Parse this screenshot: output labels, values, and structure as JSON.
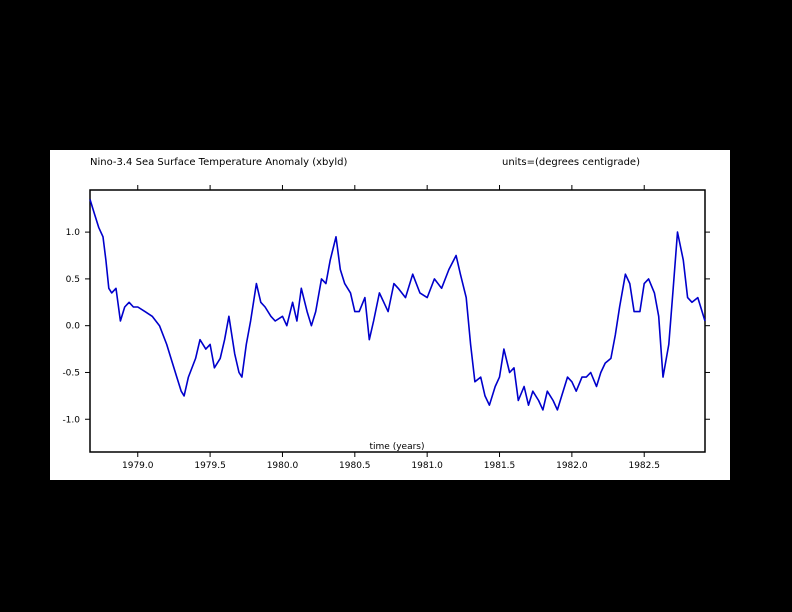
{
  "chart_data": {
    "type": "line",
    "title": "Nino-3.4 Sea Surface Temperature Anomaly (xbyld)",
    "units": "units=(degrees centigrade)",
    "xlabel": "time (years)",
    "ylabel": "",
    "xlim": [
      1978.67,
      1982.92
    ],
    "ylim": [
      -1.35,
      1.45
    ],
    "x_ticks": [
      1979.0,
      1979.5,
      1980.0,
      1980.5,
      1981.0,
      1981.5,
      1982.0,
      1982.5
    ],
    "x_tick_labels": [
      "1979.0",
      "1979.5",
      "1980.0",
      "1980.5",
      "1981.0",
      "1981.5",
      "1982.0",
      "1982.5"
    ],
    "y_ticks": [
      -1.0,
      -0.5,
      0.0,
      0.5,
      1.0
    ],
    "y_tick_labels": [
      "-1.0",
      "-0.5",
      "0.0",
      "0.5",
      "1.0"
    ],
    "grid": false,
    "line_color": "#0000cc",
    "series": [
      {
        "x": [
          1978.67,
          1978.7,
          1978.73,
          1978.76,
          1978.78,
          1978.8,
          1978.82,
          1978.85,
          1978.88,
          1978.91,
          1978.94,
          1978.97,
          1979.0,
          1979.05,
          1979.1,
          1979.15,
          1979.2,
          1979.23,
          1979.27,
          1979.3,
          1979.32,
          1979.35,
          1979.4,
          1979.43,
          1979.47,
          1979.5,
          1979.53,
          1979.57,
          1979.6,
          1979.63,
          1979.67,
          1979.7,
          1979.72,
          1979.75,
          1979.78,
          1979.82,
          1979.85,
          1979.88,
          1979.92,
          1979.95,
          1980.0,
          1980.03,
          1980.07,
          1980.1,
          1980.13,
          1980.17,
          1980.2,
          1980.23,
          1980.27,
          1980.3,
          1980.33,
          1980.37,
          1980.4,
          1980.43,
          1980.47,
          1980.5,
          1980.53,
          1980.57,
          1980.6,
          1980.63,
          1980.67,
          1980.7,
          1980.73,
          1980.77,
          1980.8,
          1980.85,
          1980.9,
          1980.95,
          1981.0,
          1981.05,
          1981.1,
          1981.15,
          1981.2,
          1981.23,
          1981.27,
          1981.3,
          1981.33,
          1981.37,
          1981.4,
          1981.43,
          1981.47,
          1981.5,
          1981.53,
          1981.57,
          1981.6,
          1981.63,
          1981.67,
          1981.7,
          1981.73,
          1981.77,
          1981.8,
          1981.83,
          1981.87,
          1981.9,
          1981.93,
          1981.97,
          1982.0,
          1982.03,
          1982.07,
          1982.1,
          1982.13,
          1982.17,
          1982.2,
          1982.23,
          1982.27,
          1982.3,
          1982.33,
          1982.37,
          1982.4,
          1982.43,
          1982.47,
          1982.5,
          1982.53,
          1982.57,
          1982.6,
          1982.63,
          1982.67,
          1982.7,
          1982.73,
          1982.77,
          1982.8,
          1982.83,
          1982.87,
          1982.9,
          1982.92
        ],
        "y": [
          1.35,
          1.2,
          1.05,
          0.95,
          0.7,
          0.4,
          0.35,
          0.4,
          0.05,
          0.2,
          0.25,
          0.2,
          0.2,
          0.15,
          0.1,
          0.0,
          -0.2,
          -0.35,
          -0.55,
          -0.7,
          -0.75,
          -0.55,
          -0.35,
          -0.15,
          -0.25,
          -0.2,
          -0.45,
          -0.35,
          -0.15,
          0.1,
          -0.3,
          -0.5,
          -0.55,
          -0.2,
          0.05,
          0.45,
          0.25,
          0.2,
          0.1,
          0.05,
          0.1,
          0.0,
          0.25,
          0.05,
          0.4,
          0.15,
          0.0,
          0.15,
          0.5,
          0.45,
          0.7,
          0.95,
          0.6,
          0.45,
          0.35,
          0.15,
          0.15,
          0.3,
          -0.15,
          0.05,
          0.35,
          0.25,
          0.15,
          0.45,
          0.4,
          0.3,
          0.55,
          0.35,
          0.3,
          0.5,
          0.4,
          0.6,
          0.75,
          0.55,
          0.3,
          -0.2,
          -0.6,
          -0.55,
          -0.75,
          -0.85,
          -0.65,
          -0.55,
          -0.25,
          -0.5,
          -0.45,
          -0.8,
          -0.65,
          -0.85,
          -0.7,
          -0.8,
          -0.9,
          -0.7,
          -0.8,
          -0.9,
          -0.75,
          -0.55,
          -0.6,
          -0.7,
          -0.55,
          -0.55,
          -0.5,
          -0.65,
          -0.5,
          -0.4,
          -0.35,
          -0.1,
          0.2,
          0.55,
          0.45,
          0.15,
          0.15,
          0.45,
          0.5,
          0.35,
          0.1,
          -0.55,
          -0.2,
          0.4,
          1.0,
          0.7,
          0.3,
          0.25,
          0.3,
          0.15,
          0.05
        ]
      }
    ]
  }
}
